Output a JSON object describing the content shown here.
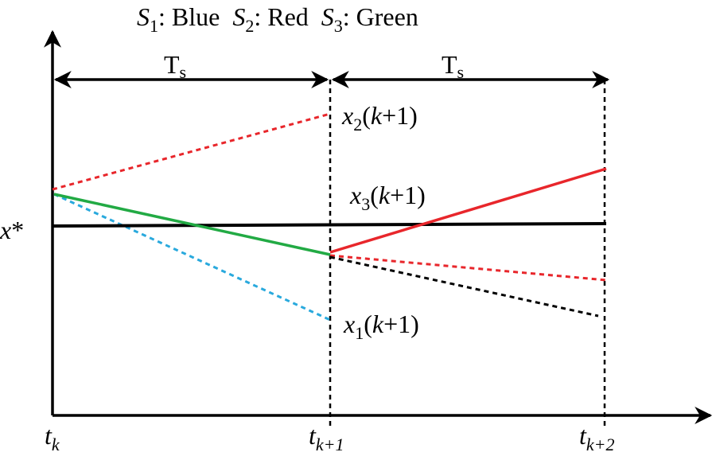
{
  "legend": [
    {
      "var": "S",
      "sub": "1",
      "text": ": Blue"
    },
    {
      "var": "S",
      "sub": "2",
      "text": ": Red"
    },
    {
      "var": "S",
      "sub": "3",
      "text": ": Green"
    }
  ],
  "periods": [
    {
      "main": "T",
      "sub": "s"
    },
    {
      "main": "T",
      "sub": "s"
    }
  ],
  "state_labels": [
    {
      "var": "x",
      "sub": "2",
      "open": "(",
      "k": "k",
      "rest": "+1)"
    },
    {
      "var": "x",
      "sub": "3",
      "open": "(",
      "k": "k",
      "rest": "+1)"
    },
    {
      "var": "x",
      "sub": "1",
      "open": "(",
      "k": "k",
      "rest": "+1)"
    }
  ],
  "reference": {
    "var": "x",
    "mark": "*"
  },
  "time_labels": [
    {
      "var": "t",
      "sub": "k"
    },
    {
      "var": "t",
      "sub": "k+1"
    },
    {
      "var": "t",
      "sub": "k+2"
    }
  ]
}
